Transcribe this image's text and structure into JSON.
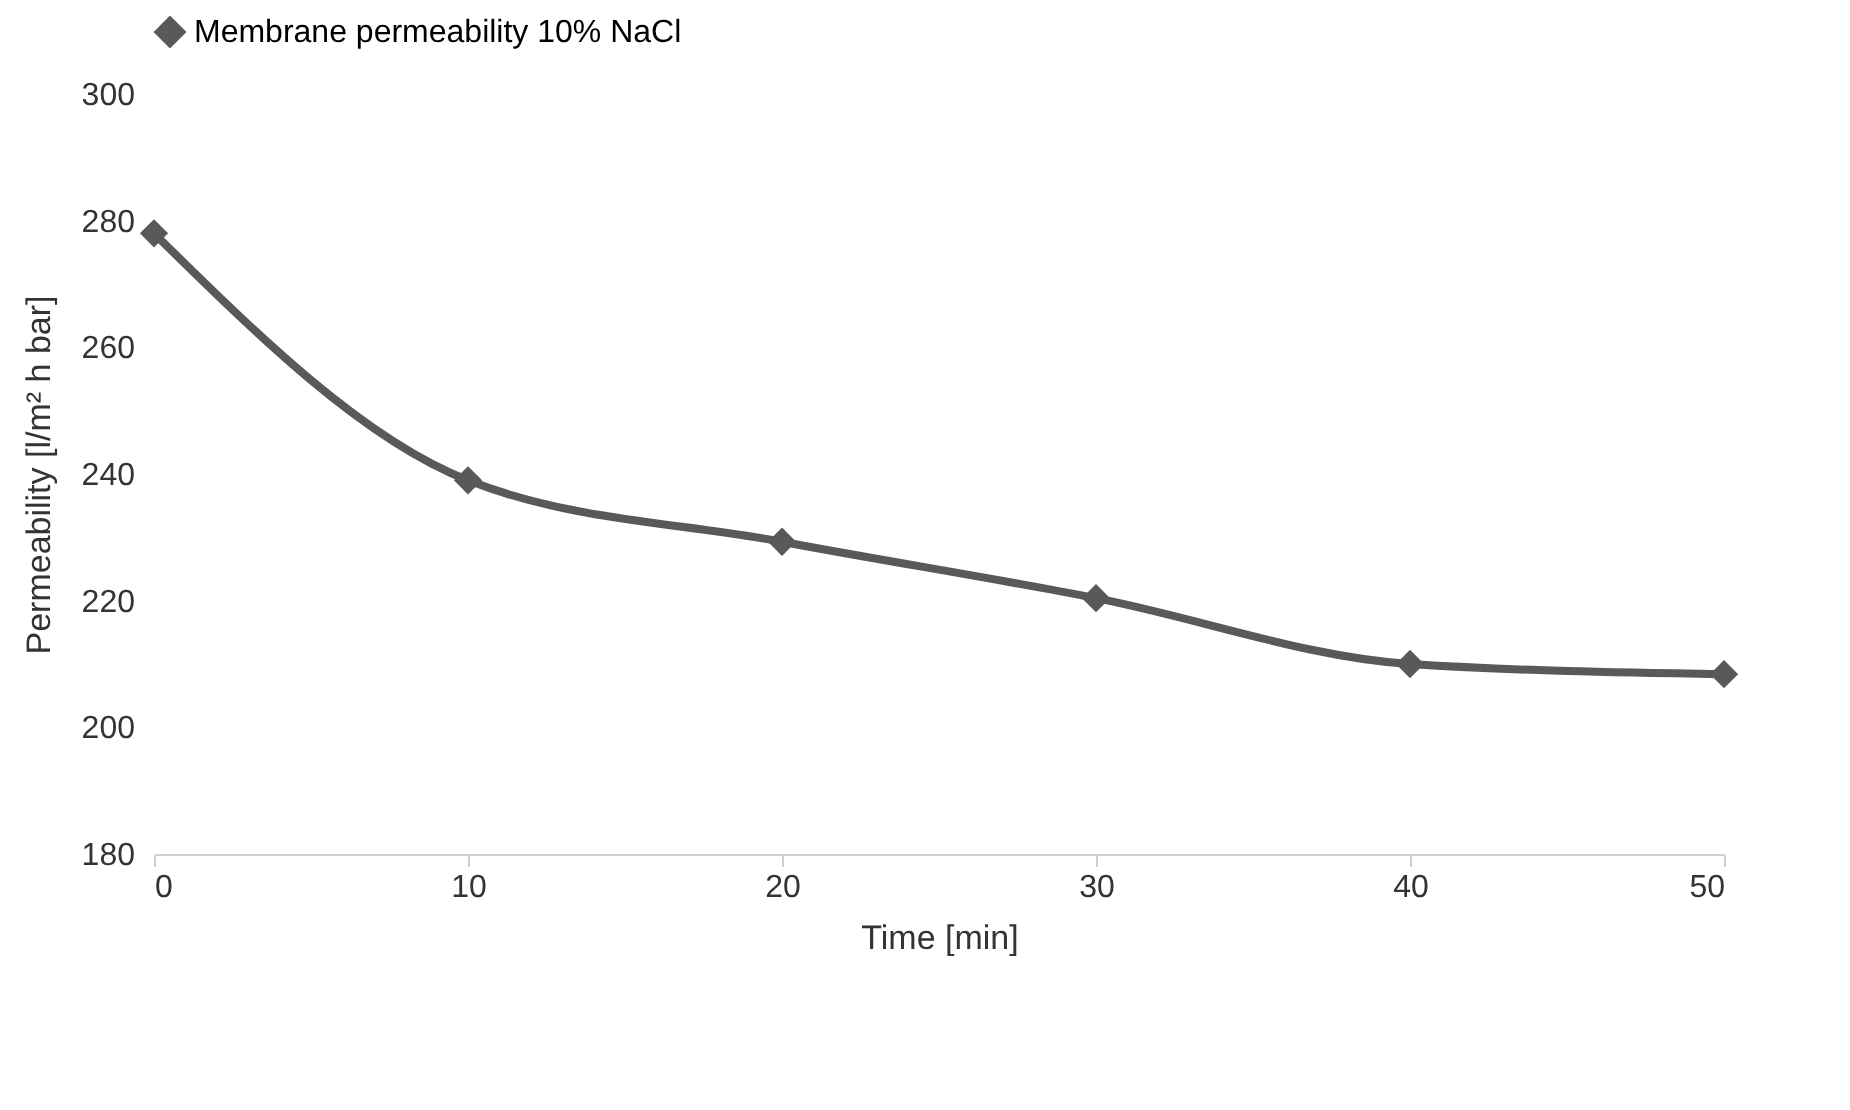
{
  "chart_data": {
    "type": "line",
    "xlabel": "Time [min]",
    "ylabel": "Permeability [l/m² h bar]",
    "x": [
      0,
      10,
      20,
      30,
      40,
      50
    ],
    "series": [
      {
        "name": "Membrane permeability 10% NaCl",
        "color": "#595959",
        "values": [
          278,
          239,
          229.3,
          220.4,
          210,
          208.4
        ]
      }
    ],
    "xlim": [
      0,
      50
    ],
    "xticks": [
      0,
      10,
      20,
      30,
      40,
      50
    ],
    "ylim": [
      180,
      300
    ],
    "yticks": [
      180,
      200,
      220,
      240,
      260,
      280,
      300
    ],
    "legend": "top",
    "marker": "diamond",
    "line_style": "solid"
  }
}
